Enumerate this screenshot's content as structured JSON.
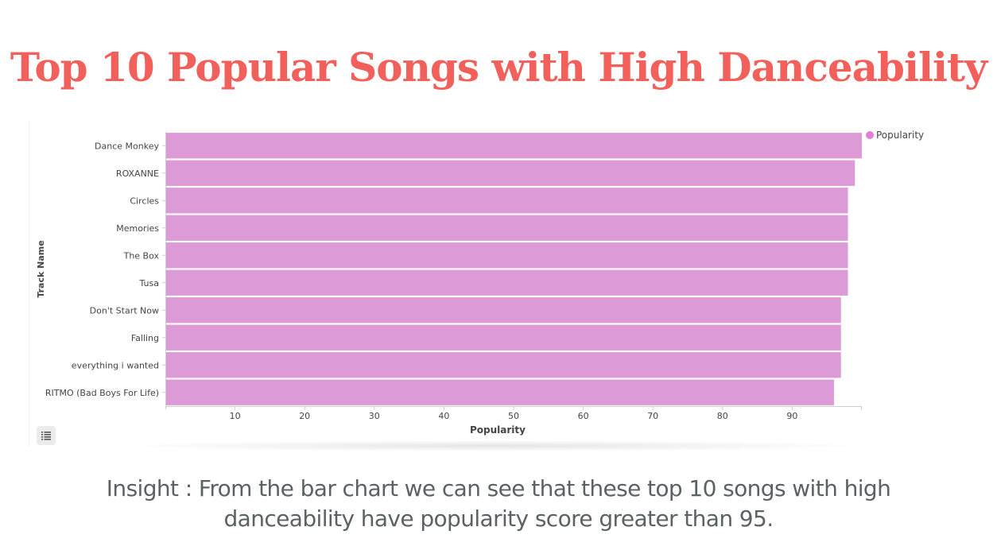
{
  "page": {
    "title": "Top 10 Popular Songs with High Danceability",
    "insight_line1": "Insight : From the bar chart we can see that these top 10 songs with high",
    "insight_line2": "danceability have popularity score greater than 95."
  },
  "colors": {
    "title": "#f2605c",
    "bar": "#dc9ad6",
    "legend_dot": "#e07fd4",
    "axis_text": "#454545",
    "axis_line": "#cfcfcf",
    "insight": "#5b6265"
  },
  "icons": {
    "table_toggle": "list-icon"
  },
  "chart_data": {
    "type": "bar",
    "orientation": "horizontal",
    "categories": [
      "Dance Monkey",
      "ROXANNE",
      "Circles",
      "Memories",
      "The Box",
      "Tusa",
      "Don't Start Now",
      "Falling",
      "everything i wanted",
      "RITMO (Bad Boys For Life)"
    ],
    "series": [
      {
        "name": "Popularity",
        "values": [
          100,
          99,
          98,
          98,
          98,
          98,
          97,
          97,
          97,
          96
        ]
      }
    ],
    "xlabel": "Popularity",
    "ylabel": "Track Name",
    "xlim": [
      0,
      100
    ],
    "xticks": [
      10,
      20,
      30,
      40,
      50,
      60,
      70,
      80,
      90
    ],
    "grid": false,
    "legend_position": "top-right"
  }
}
